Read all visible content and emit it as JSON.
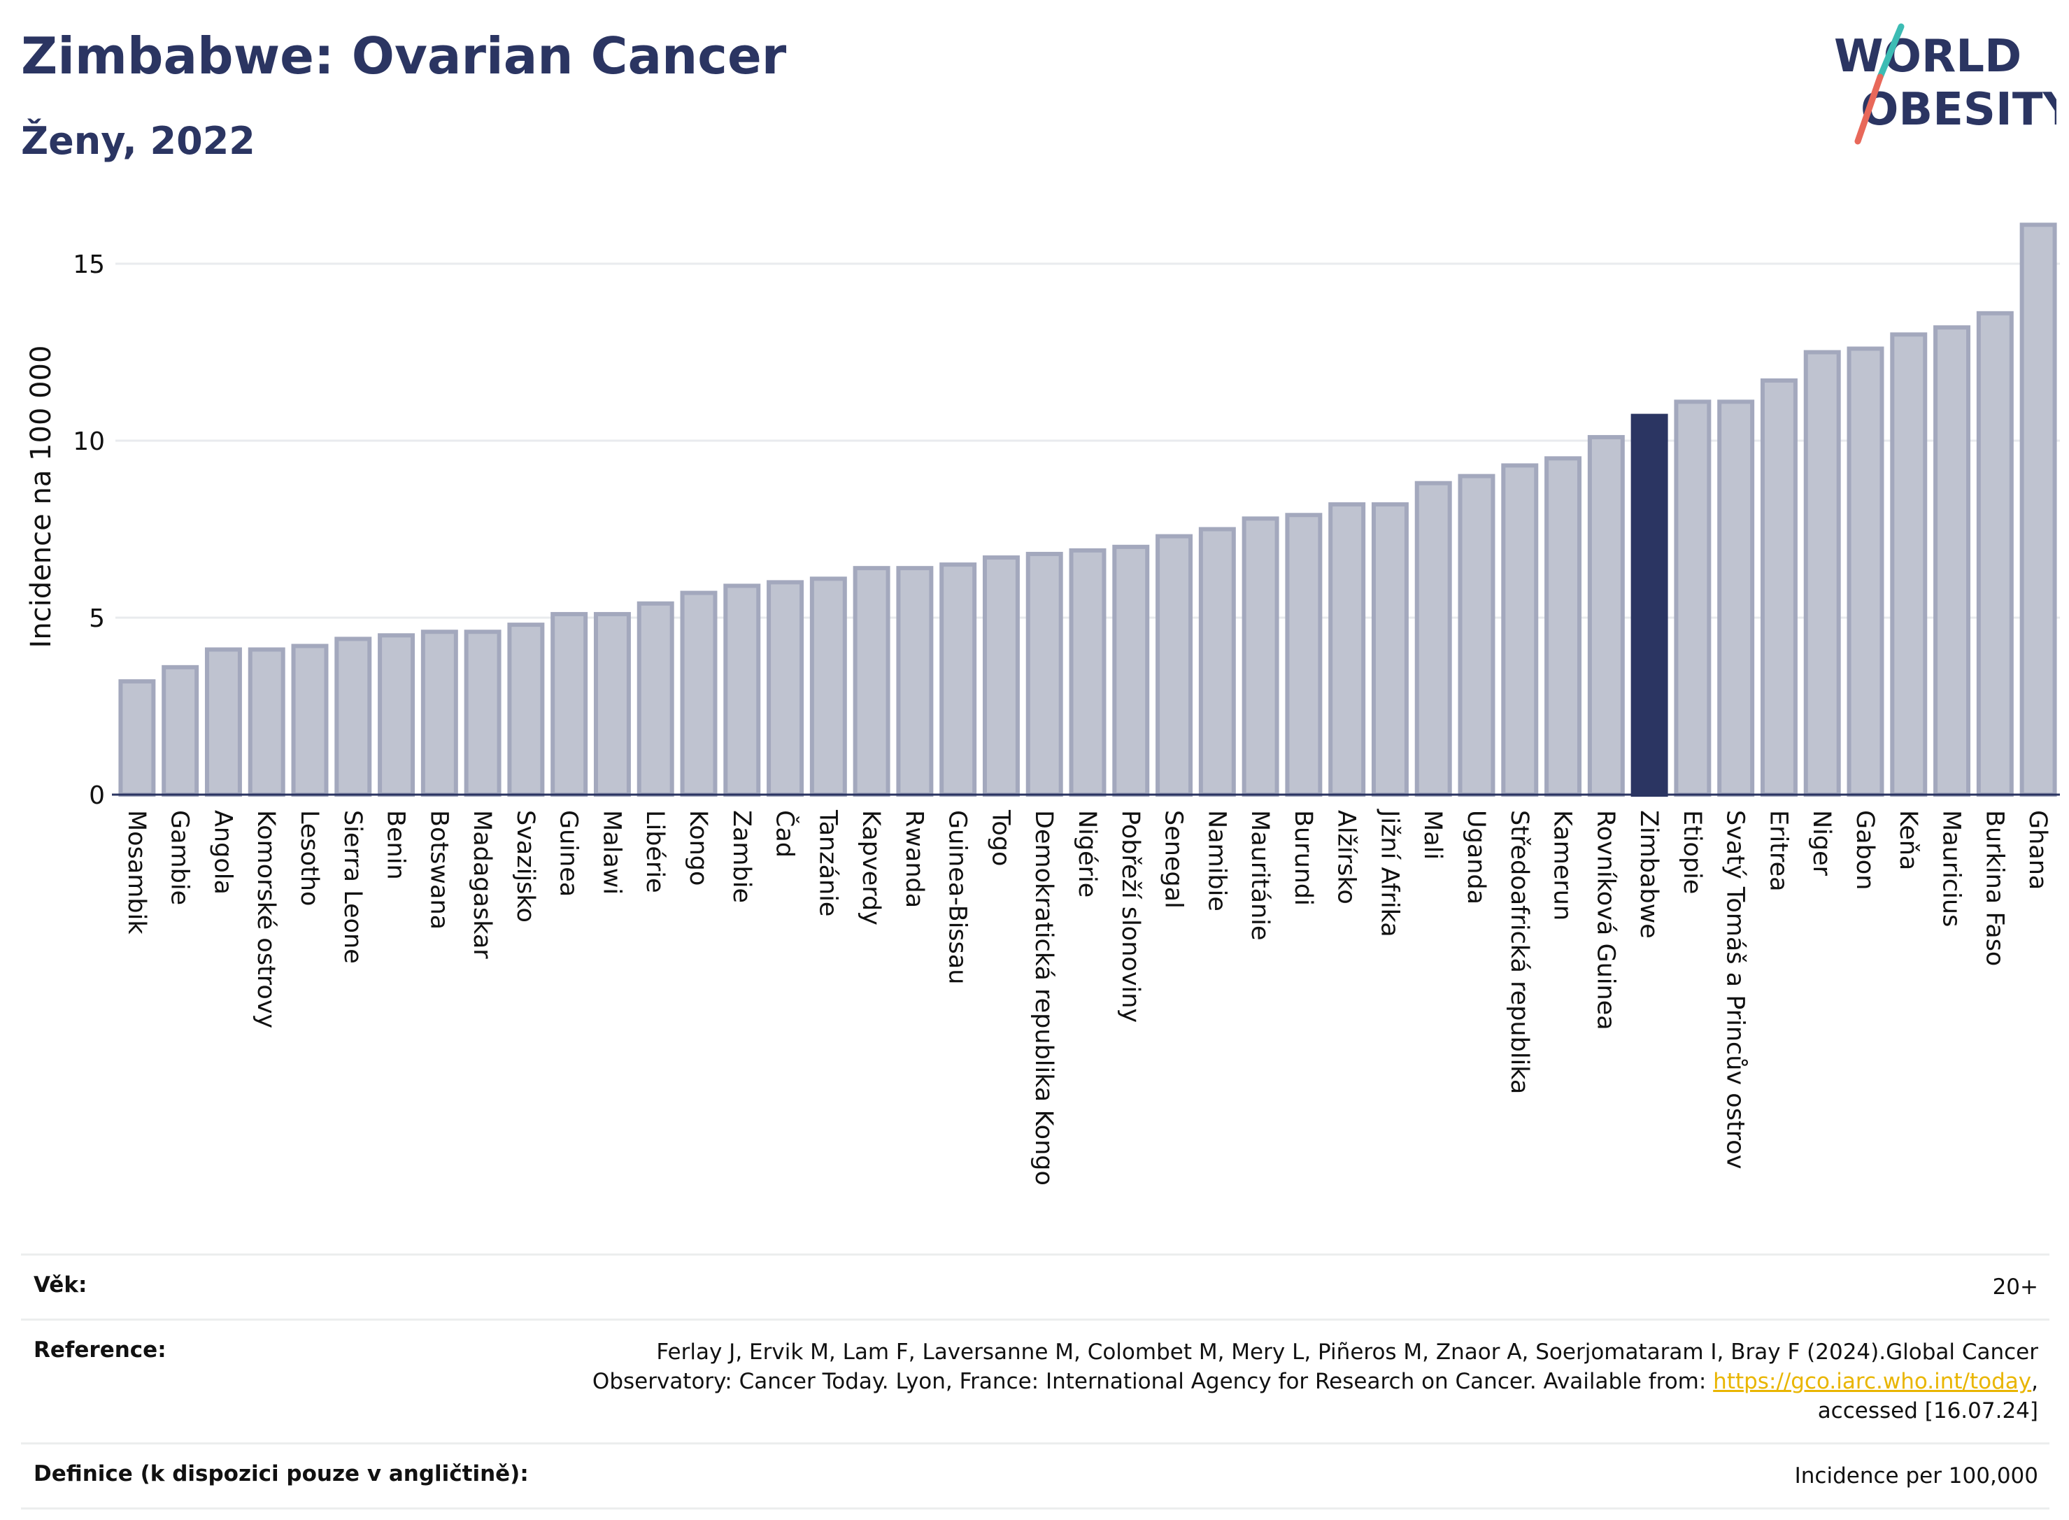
{
  "header": {
    "title": "Zimbabwe: Ovarian Cancer",
    "subtitle": "Ženy, 2022"
  },
  "logo": {
    "line1": "WORLD",
    "line2": "OBESITY",
    "colors": {
      "text": "#2b3562",
      "slash_teal": "#3cbcb4",
      "slash_red": "#e8685a"
    }
  },
  "colors": {
    "bar": "#bfc3d0",
    "bar_stroke": "#a3a8bd",
    "highlight": "#2b3562",
    "grid": "#e9ebee",
    "axis": "#2b3562"
  },
  "chart_data": {
    "type": "bar",
    "ylabel": "Incidence na 100 000",
    "xlabel": "",
    "ylim": [
      0,
      17
    ],
    "yticks": [
      0,
      5,
      10,
      15
    ],
    "grid": true,
    "highlight": "Zimbabwe",
    "categories": [
      "Mosambik",
      "Gambie",
      "Angola",
      "Komorské ostrovy",
      "Lesotho",
      "Sierra Leone",
      "Benin",
      "Botswana",
      "Madagaskar",
      "Svazijsko",
      "Guinea",
      "Malawi",
      "Libérie",
      "Kongo",
      "Zambie",
      "Čad",
      "Tanzánie",
      "Kapverdy",
      "Rwanda",
      "Guinea-Bissau",
      "Togo",
      "Demokratická republika Kongo",
      "Nigérie",
      "Pobřeží slonoviny",
      "Senegal",
      "Namibie",
      "Mauritánie",
      "Burundi",
      "Alžírsko",
      "Jižní Afrika",
      "Mali",
      "Uganda",
      "Středoafrická republika",
      "Kamerun",
      "Rovníková Guinea",
      "Zimbabwe",
      "Etiopie",
      "Svatý Tomáš a Princův ostrov",
      "Eritrea",
      "Niger",
      "Gabon",
      "Keňa",
      "Mauricius",
      "Burkina Faso",
      "Ghana"
    ],
    "values": [
      3.2,
      3.6,
      4.1,
      4.1,
      4.2,
      4.4,
      4.5,
      4.6,
      4.6,
      4.8,
      5.1,
      5.1,
      5.4,
      5.7,
      5.9,
      6.0,
      6.1,
      6.4,
      6.4,
      6.5,
      6.7,
      6.8,
      6.9,
      7.0,
      7.3,
      7.5,
      7.8,
      7.9,
      8.2,
      8.2,
      8.8,
      9.0,
      9.3,
      9.5,
      10.1,
      10.7,
      11.1,
      11.1,
      11.7,
      12.5,
      12.6,
      13.0,
      13.2,
      13.6,
      16.1
    ]
  },
  "info": {
    "age_label": "Věk:",
    "age_value": "20+",
    "reference_label": "Reference:",
    "reference_line1": "Ferlay J, Ervik M, Lam F, Laversanne M, Colombet M, Mery L, Piñeros M, Znaor A, Soerjomataram I, Bray F (2024).Global Cancer",
    "reference_line2_pre": "Observatory: Cancer Today. Lyon, France: International Agency for Research on Cancer. Available from: ",
    "reference_link": "https://gco.iarc.who.int/today",
    "reference_line2_post": ",",
    "reference_line3": "accessed [16.07.24]",
    "definition_label": "Definice (k dispozici pouze v angličtině):",
    "definition_value": "Incidence per 100,000"
  }
}
